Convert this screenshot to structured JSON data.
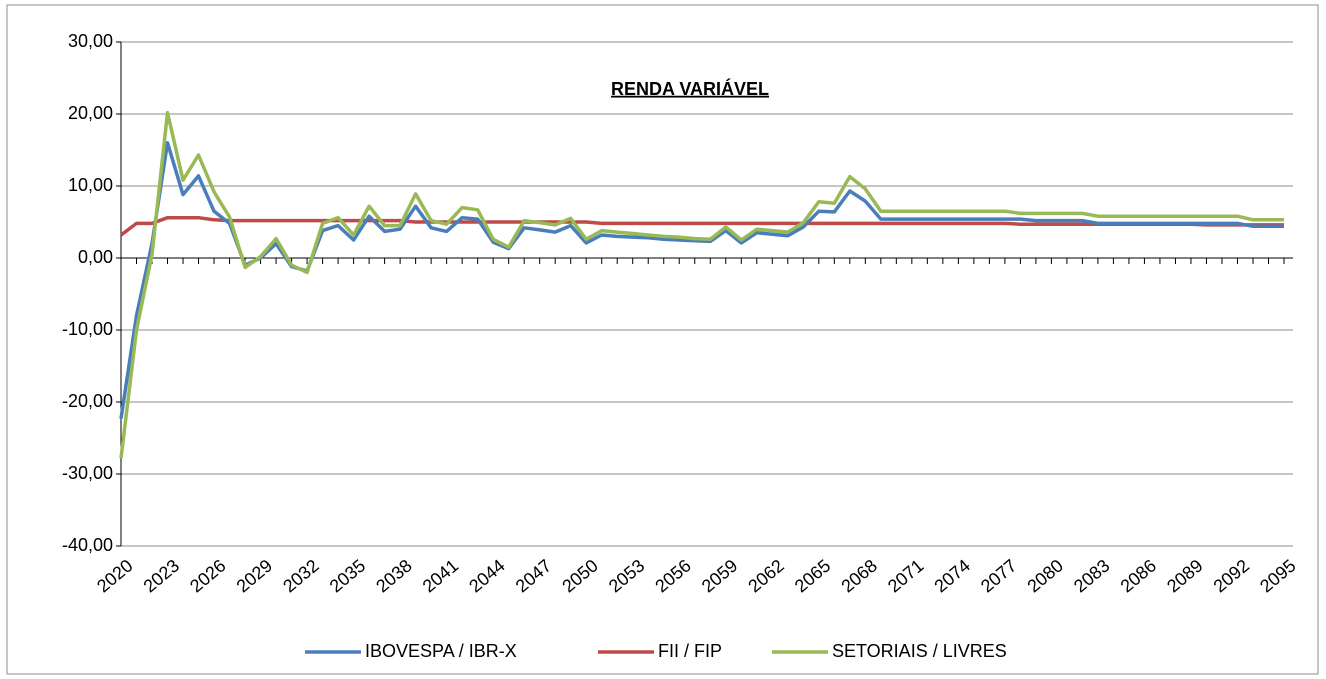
{
  "chart_data": {
    "type": "line",
    "title": "RENDA VARIÁVEL",
    "categories": [
      "2020",
      null,
      null,
      "2023",
      null,
      null,
      "2026",
      null,
      null,
      "2029",
      null,
      null,
      "2032",
      null,
      null,
      "2035",
      null,
      null,
      "2038",
      null,
      null,
      "2041",
      null,
      null,
      "2044",
      null,
      null,
      "2047",
      null,
      null,
      "2050",
      null,
      null,
      "2053",
      null,
      null,
      "2056",
      null,
      null,
      "2059",
      null,
      null,
      "2062",
      null,
      null,
      "2065",
      null,
      null,
      "2068",
      null,
      null,
      "2071",
      null,
      null,
      "2074",
      null,
      null,
      "2077",
      null,
      null,
      "2080",
      null,
      null,
      "2083",
      null,
      null,
      "2086",
      null,
      null,
      "2089",
      null,
      null,
      "2092",
      null,
      null,
      "2095"
    ],
    "series": [
      {
        "name": "IBOVESPA / IBR-X",
        "color": "#4a7ebb",
        "values": [
          -22.3,
          -8,
          2,
          16,
          8.8,
          11.4,
          6.5,
          4.8,
          -1,
          0,
          2,
          -1.2,
          -1.8,
          3.8,
          4.5,
          2.5,
          5.8,
          3.7,
          4,
          7.2,
          4.2,
          3.7,
          5.6,
          5.4,
          2.2,
          1.3,
          4.2,
          3.9,
          3.6,
          4.5,
          2.1,
          3.2,
          3.0,
          2.9,
          2.8,
          2.6,
          2.5,
          2.4,
          2.3,
          3.8,
          2.1,
          3.5,
          3.3,
          3.1,
          4.3,
          6.5,
          6.4,
          9.3,
          7.9,
          5.4,
          5.4,
          5.4,
          5.4,
          5.4,
          5.4,
          5.4,
          5.4,
          5.4,
          5.4,
          5.2,
          5.2,
          5.2,
          5.2,
          4.8,
          4.8,
          4.8,
          4.8,
          4.8,
          4.8,
          4.8,
          4.8,
          4.8,
          4.8,
          4.4,
          4.4,
          4.4
        ]
      },
      {
        "name": "FII / FIP",
        "color": "#be4b48",
        "values": [
          3.2,
          4.8,
          4.8,
          5.6,
          5.6,
          5.6,
          5.3,
          5.2,
          5.2,
          5.2,
          5.2,
          5.2,
          5.2,
          5.2,
          5.2,
          5.2,
          5.2,
          5.2,
          5.2,
          5.0,
          5.0,
          5.0,
          5.0,
          5.0,
          5.0,
          5.0,
          5.0,
          5.0,
          5.0,
          5.0,
          5.0,
          4.8,
          4.8,
          4.8,
          4.8,
          4.8,
          4.8,
          4.8,
          4.8,
          4.8,
          4.8,
          4.8,
          4.8,
          4.8,
          4.8,
          4.8,
          4.8,
          4.8,
          4.8,
          4.8,
          4.8,
          4.8,
          4.8,
          4.8,
          4.8,
          4.8,
          4.8,
          4.8,
          4.7,
          4.7,
          4.7,
          4.7,
          4.7,
          4.7,
          4.7,
          4.7,
          4.7,
          4.7,
          4.7,
          4.7,
          4.6,
          4.6,
          4.6,
          4.6,
          4.6,
          4.6
        ]
      },
      {
        "name": "SETORIAIS / LIVRES",
        "color": "#98b954",
        "values": [
          -27.8,
          -10,
          0.5,
          20.2,
          10.8,
          14.3,
          9.2,
          5.7,
          -1.3,
          0.2,
          2.7,
          -1,
          -2,
          4.8,
          5.6,
          3.2,
          7.2,
          4.5,
          4.5,
          8.9,
          5.2,
          4.7,
          7,
          6.7,
          2.6,
          1.5,
          5.2,
          4.9,
          4.6,
          5.5,
          2.6,
          3.8,
          3.6,
          3.4,
          3.2,
          3.0,
          2.9,
          2.7,
          2.6,
          4.3,
          2.5,
          4.0,
          3.8,
          3.6,
          4.9,
          7.8,
          7.6,
          11.3,
          9.6,
          6.5,
          6.5,
          6.5,
          6.5,
          6.5,
          6.5,
          6.5,
          6.5,
          6.5,
          6.2,
          6.2,
          6.2,
          6.2,
          6.2,
          5.8,
          5.8,
          5.8,
          5.8,
          5.8,
          5.8,
          5.8,
          5.8,
          5.8,
          5.8,
          5.3,
          5.3,
          5.3
        ]
      }
    ],
    "ylim": [
      -40,
      30
    ],
    "yticks": [
      {
        "value": -40,
        "label": "-40,00"
      },
      {
        "value": -30,
        "label": "-30,00"
      },
      {
        "value": -20,
        "label": "-20,00"
      },
      {
        "value": -10,
        "label": "-10,00"
      },
      {
        "value": 0,
        "label": "0,00"
      },
      {
        "value": 10,
        "label": "10,00"
      },
      {
        "value": 20,
        "label": "20,00"
      },
      {
        "value": 30,
        "label": "30,00"
      }
    ],
    "grid": true,
    "legend": "bottom"
  }
}
